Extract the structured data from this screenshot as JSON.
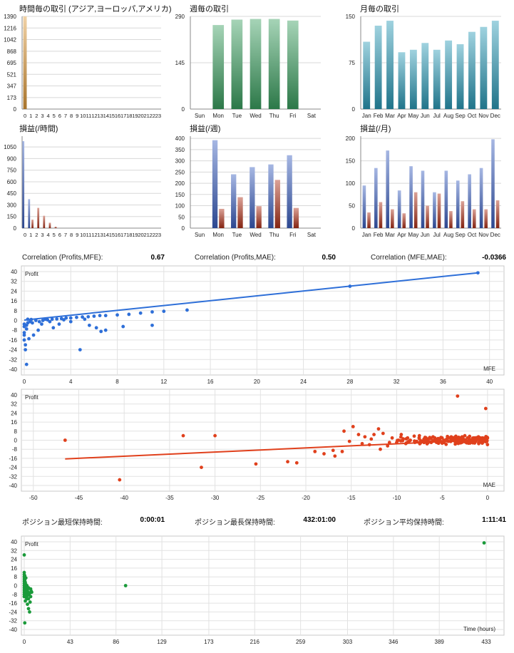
{
  "stats_row_1": [
    {
      "label": "Correlation (Profits,MFE):",
      "value": "0.67"
    },
    {
      "label": "Correlation (Profits,MAE):",
      "value": "0.50"
    },
    {
      "label": "Correlation (MFE,MAE):",
      "value": "-0.0366"
    }
  ],
  "stats_row_2": [
    {
      "label": "ポジション最短保持時間:",
      "value": "0:00:01"
    },
    {
      "label": "ポジション最長保持時間:",
      "value": "432:01:00"
    },
    {
      "label": "ポジション平均保持時間:",
      "value": "1:11:41"
    }
  ],
  "chart_data": [
    {
      "type": "bar",
      "title": "時間毎の取引 (アジア,ヨーロッパ,アメリカ)",
      "categories": [
        "0",
        "1",
        "2",
        "3",
        "4",
        "5",
        "6",
        "7",
        "8",
        "9",
        "10",
        "11",
        "12",
        "13",
        "14",
        "15",
        "16",
        "17",
        "18",
        "19",
        "20",
        "21",
        "22",
        "23"
      ],
      "series": [
        {
          "color": "#e09a3a",
          "values": [
            1390,
            0,
            0,
            0,
            0,
            0,
            0,
            0,
            0,
            0,
            0,
            0,
            0,
            0,
            0,
            0,
            0,
            0,
            0,
            0,
            0,
            0,
            0,
            0
          ]
        }
      ],
      "yticks": [
        "0",
        "173",
        "347",
        "521",
        "695",
        "868",
        "1042",
        "1216",
        "1390"
      ],
      "ylim": [
        0,
        1390
      ],
      "grid": true
    },
    {
      "type": "bar",
      "title": "週毎の取引",
      "categories": [
        "Sun",
        "Mon",
        "Tue",
        "Wed",
        "Thu",
        "Fri",
        "Sat"
      ],
      "series": [
        {
          "color": "#3aa060",
          "values": [
            0,
            263,
            280,
            282,
            282,
            277,
            0
          ]
        }
      ],
      "yticks": [
        "0",
        "145",
        "290"
      ],
      "ylim": [
        0,
        290
      ],
      "grid": true
    },
    {
      "type": "bar",
      "title": "月毎の取引",
      "categories": [
        "Jan",
        "Feb",
        "Mar",
        "Apr",
        "May",
        "Jun",
        "Jul",
        "Aug",
        "Sep",
        "Oct",
        "Nov",
        "Dec"
      ],
      "series": [
        {
          "color": "#2a9ab8",
          "values": [
            109,
            135,
            143,
            92,
            96,
            107,
            96,
            111,
            105,
            125,
            133,
            143
          ]
        }
      ],
      "yticks": [
        "0",
        "75",
        "150"
      ],
      "ylim": [
        0,
        150
      ],
      "grid": true
    },
    {
      "type": "bar",
      "title": "損益(/時間)",
      "categories": [
        "0",
        "1",
        "2",
        "3",
        "4",
        "5",
        "6",
        "7",
        "8",
        "9",
        "10",
        "11",
        "12",
        "13",
        "14",
        "15",
        "16",
        "17",
        "18",
        "19",
        "20",
        "21",
        "22",
        "23"
      ],
      "series": [
        {
          "color": "#3a5fc0",
          "values": [
            1125,
            375,
            0,
            0,
            0,
            0,
            0,
            0,
            0,
            0,
            0,
            0,
            0,
            0,
            0,
            0,
            0,
            0,
            0,
            0,
            0,
            0,
            0,
            0
          ]
        },
        {
          "color": "#b03018",
          "values": [
            0,
            110,
            262,
            160,
            70,
            18,
            0,
            0,
            0,
            0,
            0,
            0,
            0,
            0,
            0,
            0,
            0,
            0,
            0,
            0,
            0,
            0,
            0,
            0
          ]
        }
      ],
      "yticks": [
        "0",
        "150",
        "300",
        "450",
        "600",
        "750",
        "900",
        "1050"
      ],
      "ylim": [
        0,
        1190
      ],
      "grid": true
    },
    {
      "type": "bar",
      "title": "損益(/週)",
      "categories": [
        "Sun",
        "Mon",
        "Tue",
        "Wed",
        "Thu",
        "Fri",
        "Sat"
      ],
      "series": [
        {
          "color": "#3a5fc0",
          "values": [
            0,
            392,
            240,
            272,
            284,
            325,
            0
          ]
        },
        {
          "color": "#b03018",
          "values": [
            0,
            86,
            138,
            98,
            215,
            90,
            0
          ]
        }
      ],
      "yticks": [
        "0",
        "50",
        "100",
        "150",
        "200",
        "250",
        "300",
        "350",
        "400"
      ],
      "ylim": [
        0,
        410
      ],
      "grid": true
    },
    {
      "type": "bar",
      "title": "損益(/月)",
      "categories": [
        "Jan",
        "Feb",
        "Mar",
        "Apr",
        "May",
        "Jun",
        "Jul",
        "Aug",
        "Sep",
        "Oct",
        "Nov",
        "Dec"
      ],
      "series": [
        {
          "color": "#3a5fc0",
          "values": [
            95,
            134,
            173,
            84,
            138,
            128,
            80,
            128,
            106,
            120,
            134,
            198
          ]
        },
        {
          "color": "#b03018",
          "values": [
            35,
            58,
            42,
            33,
            80,
            50,
            77,
            38,
            60,
            42,
            42,
            62
          ]
        }
      ],
      "yticks": [
        "0",
        "50",
        "100",
        "150",
        "200"
      ],
      "ylim": [
        0,
        205
      ],
      "grid": true
    },
    {
      "type": "scatter",
      "ylabel": "Profit",
      "xlabel": "MFE",
      "color": "#2e6fd8",
      "xticks": [
        0,
        4,
        8,
        12,
        16,
        20,
        24,
        28,
        32,
        36,
        40
      ],
      "yticks": [
        -40,
        -32,
        -24,
        -16,
        -8,
        0,
        8,
        16,
        24,
        32,
        40
      ],
      "xlim": [
        0,
        41
      ],
      "ylim": [
        -40,
        40
      ],
      "trendline": [
        [
          0,
          0.3
        ],
        [
          39,
          39
        ]
      ],
      "points": [
        [
          0,
          -10
        ],
        [
          0,
          -12
        ],
        [
          0,
          -16
        ],
        [
          0.1,
          -20
        ],
        [
          0.1,
          -24
        ],
        [
          0.2,
          -36
        ],
        [
          0,
          -5
        ],
        [
          0,
          -3
        ],
        [
          0.2,
          -4
        ],
        [
          0.3,
          -2
        ],
        [
          0.2,
          -7
        ],
        [
          0.5,
          -1
        ],
        [
          0.7,
          -2
        ],
        [
          1,
          0
        ],
        [
          1.3,
          -1
        ],
        [
          1.6,
          0
        ],
        [
          1.8,
          1
        ],
        [
          2,
          0.5
        ],
        [
          2.4,
          1
        ],
        [
          2.8,
          1.2
        ],
        [
          3.2,
          1.5
        ],
        [
          3.6,
          2
        ],
        [
          4,
          2
        ],
        [
          4.5,
          2.5
        ],
        [
          5,
          2.8
        ],
        [
          5.5,
          3
        ],
        [
          6,
          3.5
        ],
        [
          6.5,
          4
        ],
        [
          7,
          4
        ],
        [
          8,
          4.5
        ],
        [
          9,
          5
        ],
        [
          10,
          6
        ],
        [
          11,
          7
        ],
        [
          12,
          7.5
        ],
        [
          14,
          8.5
        ],
        [
          28,
          28
        ],
        [
          39,
          39
        ],
        [
          4.8,
          -24
        ],
        [
          5.6,
          -4
        ],
        [
          6.2,
          -6
        ],
        [
          6.6,
          -9
        ],
        [
          7,
          -8
        ],
        [
          8.5,
          -5
        ],
        [
          11,
          -4
        ],
        [
          2.5,
          -6
        ],
        [
          3,
          -3
        ],
        [
          1.2,
          -8
        ],
        [
          0.8,
          -12
        ],
        [
          0.4,
          -15
        ],
        [
          1.5,
          -3
        ],
        [
          2.2,
          -1
        ],
        [
          4,
          -1
        ],
        [
          5.2,
          1
        ],
        [
          3.4,
          0.5
        ],
        [
          0.3,
          1
        ],
        [
          0.6,
          0.8
        ]
      ]
    },
    {
      "type": "scatter",
      "ylabel": "Profit",
      "xlabel": "MAE",
      "color": "#e0401c",
      "xticks": [
        -50,
        -45,
        -40,
        -35,
        -30,
        -25,
        -20,
        -15,
        -10,
        -5,
        0
      ],
      "yticks": [
        -40,
        -32,
        -24,
        -16,
        -8,
        0,
        8,
        16,
        24,
        32,
        40
      ],
      "xlim": [
        -51,
        1.5
      ],
      "ylim": [
        -40,
        40
      ],
      "trendline": [
        [
          -46.5,
          -16.5
        ],
        [
          0,
          0.5
        ]
      ],
      "points": [
        [
          -46.5,
          0
        ],
        [
          -40.5,
          -35
        ],
        [
          -33.5,
          4
        ],
        [
          -31.5,
          -24
        ],
        [
          -30,
          4
        ],
        [
          -25.5,
          -21
        ],
        [
          -22,
          -19
        ],
        [
          -21,
          -20
        ],
        [
          -19,
          -10
        ],
        [
          -18,
          -12
        ],
        [
          -17,
          -9
        ],
        [
          -16,
          -10
        ],
        [
          -15.8,
          8
        ],
        [
          -14.8,
          12
        ],
        [
          -14.2,
          5
        ],
        [
          -13.5,
          3
        ],
        [
          -13,
          -4
        ],
        [
          -12.5,
          5
        ],
        [
          -12,
          10
        ],
        [
          -11.5,
          6
        ],
        [
          -11,
          -5
        ],
        [
          -10.5,
          2
        ],
        [
          -10,
          -2
        ],
        [
          -9.5,
          5
        ],
        [
          -9,
          -3
        ],
        [
          -8.5,
          0
        ],
        [
          -8,
          -2
        ],
        [
          -7.5,
          4
        ],
        [
          -7,
          1
        ],
        [
          -6.5,
          -1
        ],
        [
          -6,
          3
        ],
        [
          -5.5,
          0
        ],
        [
          -5,
          2
        ],
        [
          -4.5,
          1
        ],
        [
          -4,
          3
        ],
        [
          -3.5,
          0
        ],
        [
          -3.3,
          39
        ],
        [
          -3,
          2
        ],
        [
          -2.5,
          4
        ],
        [
          -2,
          1
        ],
        [
          -1.5,
          2
        ],
        [
          -1,
          3
        ],
        [
          -0.5,
          1
        ],
        [
          -0.2,
          28
        ],
        [
          0,
          2
        ],
        [
          -11.8,
          -8
        ],
        [
          -10.8,
          -2
        ],
        [
          -9.8,
          0
        ],
        [
          -8.8,
          2
        ],
        [
          -7.8,
          -1
        ],
        [
          -6.8,
          0
        ],
        [
          -5.8,
          2
        ],
        [
          -4.8,
          0
        ],
        [
          -3.8,
          1
        ],
        [
          -2.8,
          3
        ],
        [
          -1.8,
          0
        ],
        [
          -0.8,
          2
        ],
        [
          -12.8,
          1
        ],
        [
          -13.8,
          -3
        ],
        [
          -16.8,
          -14
        ],
        [
          -15.2,
          -1
        ],
        [
          -6.2,
          -2
        ],
        [
          -4.2,
          2
        ],
        [
          -2.2,
          2
        ],
        [
          -1.2,
          1
        ]
      ],
      "dense_band": {
        "x_from": -10,
        "x_to": 0,
        "y_center": 0,
        "count": 160
      }
    },
    {
      "type": "scatter",
      "ylabel": "Profit",
      "xlabel": "Time (hours)",
      "color": "#1a9a3a",
      "xticks": [
        0,
        43,
        86,
        129,
        173,
        216,
        259,
        303,
        346,
        389,
        433
      ],
      "yticks": [
        -40,
        -32,
        -24,
        -16,
        -8,
        0,
        8,
        16,
        24,
        32,
        40
      ],
      "xlim": [
        0,
        447
      ],
      "ylim": [
        -40,
        40
      ],
      "points": [
        [
          0,
          28
        ],
        [
          0,
          12
        ],
        [
          0,
          10
        ],
        [
          0,
          8
        ],
        [
          0,
          6
        ],
        [
          0,
          4
        ],
        [
          0,
          2
        ],
        [
          0,
          0
        ],
        [
          0,
          -2
        ],
        [
          0,
          -4
        ],
        [
          0,
          -6
        ],
        [
          0,
          -8
        ],
        [
          0,
          -10
        ],
        [
          0.5,
          5
        ],
        [
          0.5,
          -3
        ],
        [
          1,
          3
        ],
        [
          1,
          -1
        ],
        [
          1,
          -9
        ],
        [
          1.5,
          1
        ],
        [
          1.5,
          -5
        ],
        [
          2,
          -2
        ],
        [
          2,
          -7
        ],
        [
          2.5,
          0
        ],
        [
          2.5,
          -12
        ],
        [
          3,
          -4
        ],
        [
          3,
          -17
        ],
        [
          3.5,
          -6
        ],
        [
          4,
          -2
        ],
        [
          4,
          -21
        ],
        [
          4.5,
          -8
        ],
        [
          5,
          -24
        ],
        [
          5.5,
          -15
        ],
        [
          6,
          -10
        ],
        [
          6.5,
          -5
        ],
        [
          0.5,
          -34
        ],
        [
          1,
          -14
        ],
        [
          2,
          -11
        ],
        [
          3,
          -9
        ],
        [
          4,
          -12
        ],
        [
          5,
          -7
        ],
        [
          6,
          -3
        ],
        [
          7,
          -6
        ],
        [
          0.5,
          9
        ],
        [
          1.5,
          7
        ],
        [
          95,
          0
        ],
        [
          431,
          39
        ]
      ]
    }
  ]
}
